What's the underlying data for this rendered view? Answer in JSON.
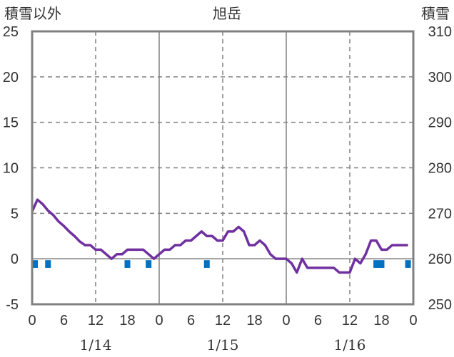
{
  "chart_data": {
    "type": "line",
    "title": "旭岳",
    "ylabel_left": "積雪以外",
    "ylabel_right": "積雪",
    "ylim_left": [
      -5,
      25
    ],
    "ylim_right": [
      250,
      310
    ],
    "yticks_left": [
      "25",
      "20",
      "15",
      "10",
      "5",
      "0",
      "-5"
    ],
    "yticks_right": [
      "310",
      "300",
      "290",
      "280",
      "270",
      "260",
      "250"
    ],
    "xticks": [
      "0",
      "6",
      "12",
      "18",
      "0",
      "6",
      "12",
      "18",
      "0",
      "6",
      "12",
      "18",
      "0"
    ],
    "date_labels": [
      "1/14",
      "1/15",
      "1/16"
    ],
    "grid": true,
    "colors": {
      "line": "#7030a0",
      "bar": "#0070c0",
      "axis": "#808080",
      "grid": "#808080"
    },
    "series": [
      {
        "axis": "left",
        "x": [
          0,
          1,
          2,
          3,
          4,
          5,
          6,
          7,
          8,
          9,
          10,
          11,
          12,
          13,
          14,
          15,
          16,
          17,
          18,
          19,
          20,
          21,
          22,
          23,
          24,
          25,
          26,
          27,
          28,
          29,
          30,
          31,
          32,
          33,
          34,
          35,
          36,
          37,
          38,
          39,
          40,
          41,
          42,
          43,
          44,
          45,
          46,
          47,
          48,
          49,
          50,
          51,
          52,
          53,
          54,
          55,
          56,
          57,
          58,
          59,
          60,
          61,
          62,
          63,
          64,
          65,
          66,
          67,
          68,
          69,
          70,
          71
        ],
        "values": [
          5.2,
          6.5,
          6.0,
          5.3,
          4.8,
          4.1,
          3.6,
          3.0,
          2.5,
          1.9,
          1.5,
          1.5,
          1.0,
          1.0,
          0.5,
          0.0,
          0.5,
          0.5,
          1.0,
          1.0,
          1.0,
          1.0,
          0.5,
          0.0,
          0.5,
          1.0,
          1.0,
          1.5,
          1.5,
          2.0,
          2.0,
          2.5,
          3.0,
          2.5,
          2.5,
          2.0,
          2.0,
          3.0,
          3.0,
          3.5,
          3.0,
          1.5,
          1.5,
          2.0,
          1.5,
          0.5,
          0.0,
          0.0,
          0.0,
          -0.5,
          -1.5,
          0.0,
          -1.0,
          -1.0,
          -1.0,
          -1.0,
          -1.0,
          -1.0,
          -1.5,
          -1.5,
          -1.5,
          0.0,
          -0.5,
          0.5,
          2.0,
          2.0,
          1.0,
          1.0,
          1.5,
          1.5,
          1.5,
          1.5
        ]
      },
      {
        "axis": "left",
        "kind": "bar",
        "x": [
          0,
          3,
          18,
          22,
          33,
          65,
          66,
          71
        ],
        "values": [
          -1,
          -1,
          -1,
          -1,
          -1,
          -1,
          -1,
          -1
        ]
      }
    ]
  }
}
